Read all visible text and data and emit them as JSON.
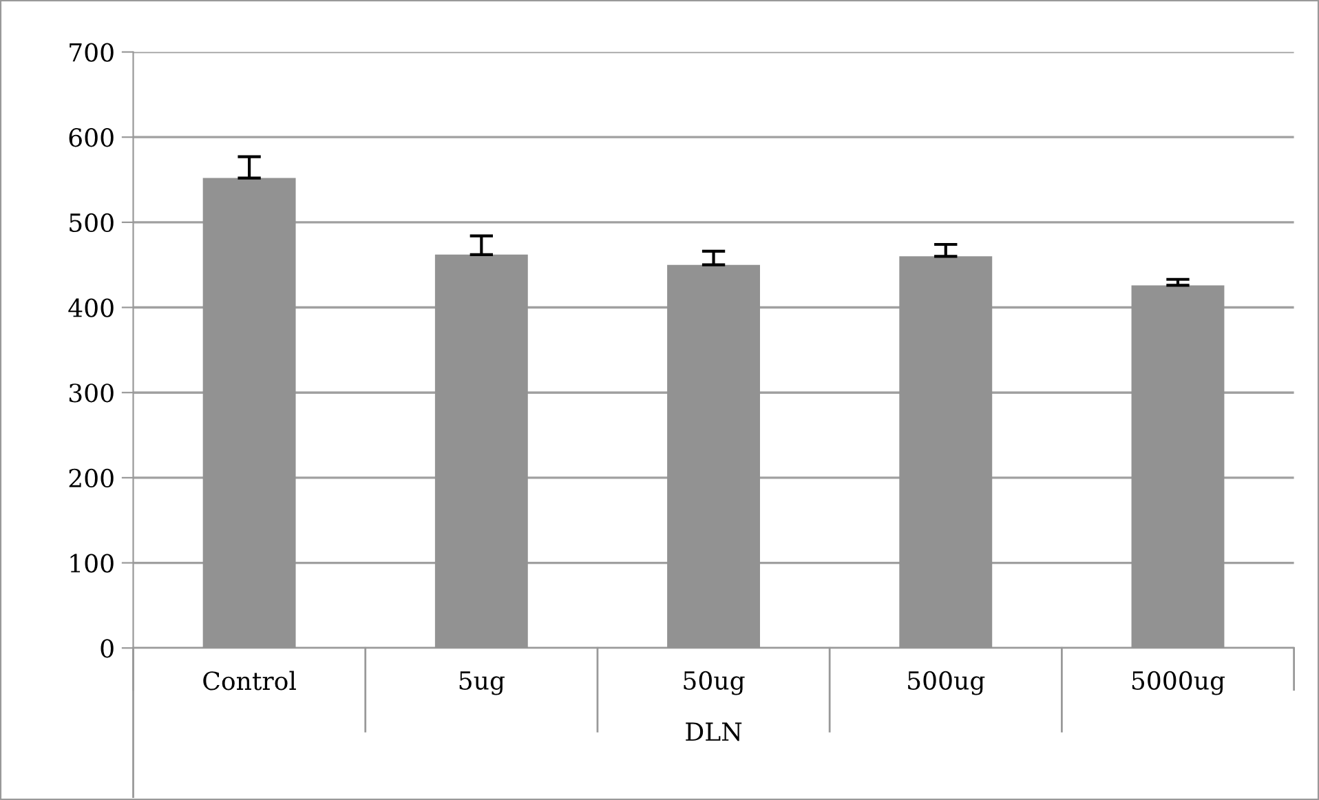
{
  "chart_data": {
    "type": "bar",
    "xlabel": "DLN",
    "categories": [
      "Control",
      "5ug",
      "50ug",
      "500ug",
      "5000ug"
    ],
    "values": [
      552,
      462,
      450,
      460,
      426
    ],
    "errors": [
      [
        552,
        577
      ],
      [
        462,
        484
      ],
      [
        450,
        466
      ],
      [
        460,
        474
      ],
      [
        426,
        433
      ]
    ],
    "color": "#929292",
    "ylim": [
      0,
      700
    ],
    "yticks": [
      0,
      100,
      200,
      300,
      400,
      500,
      600,
      700
    ],
    "grid": "y",
    "legend": false
  }
}
